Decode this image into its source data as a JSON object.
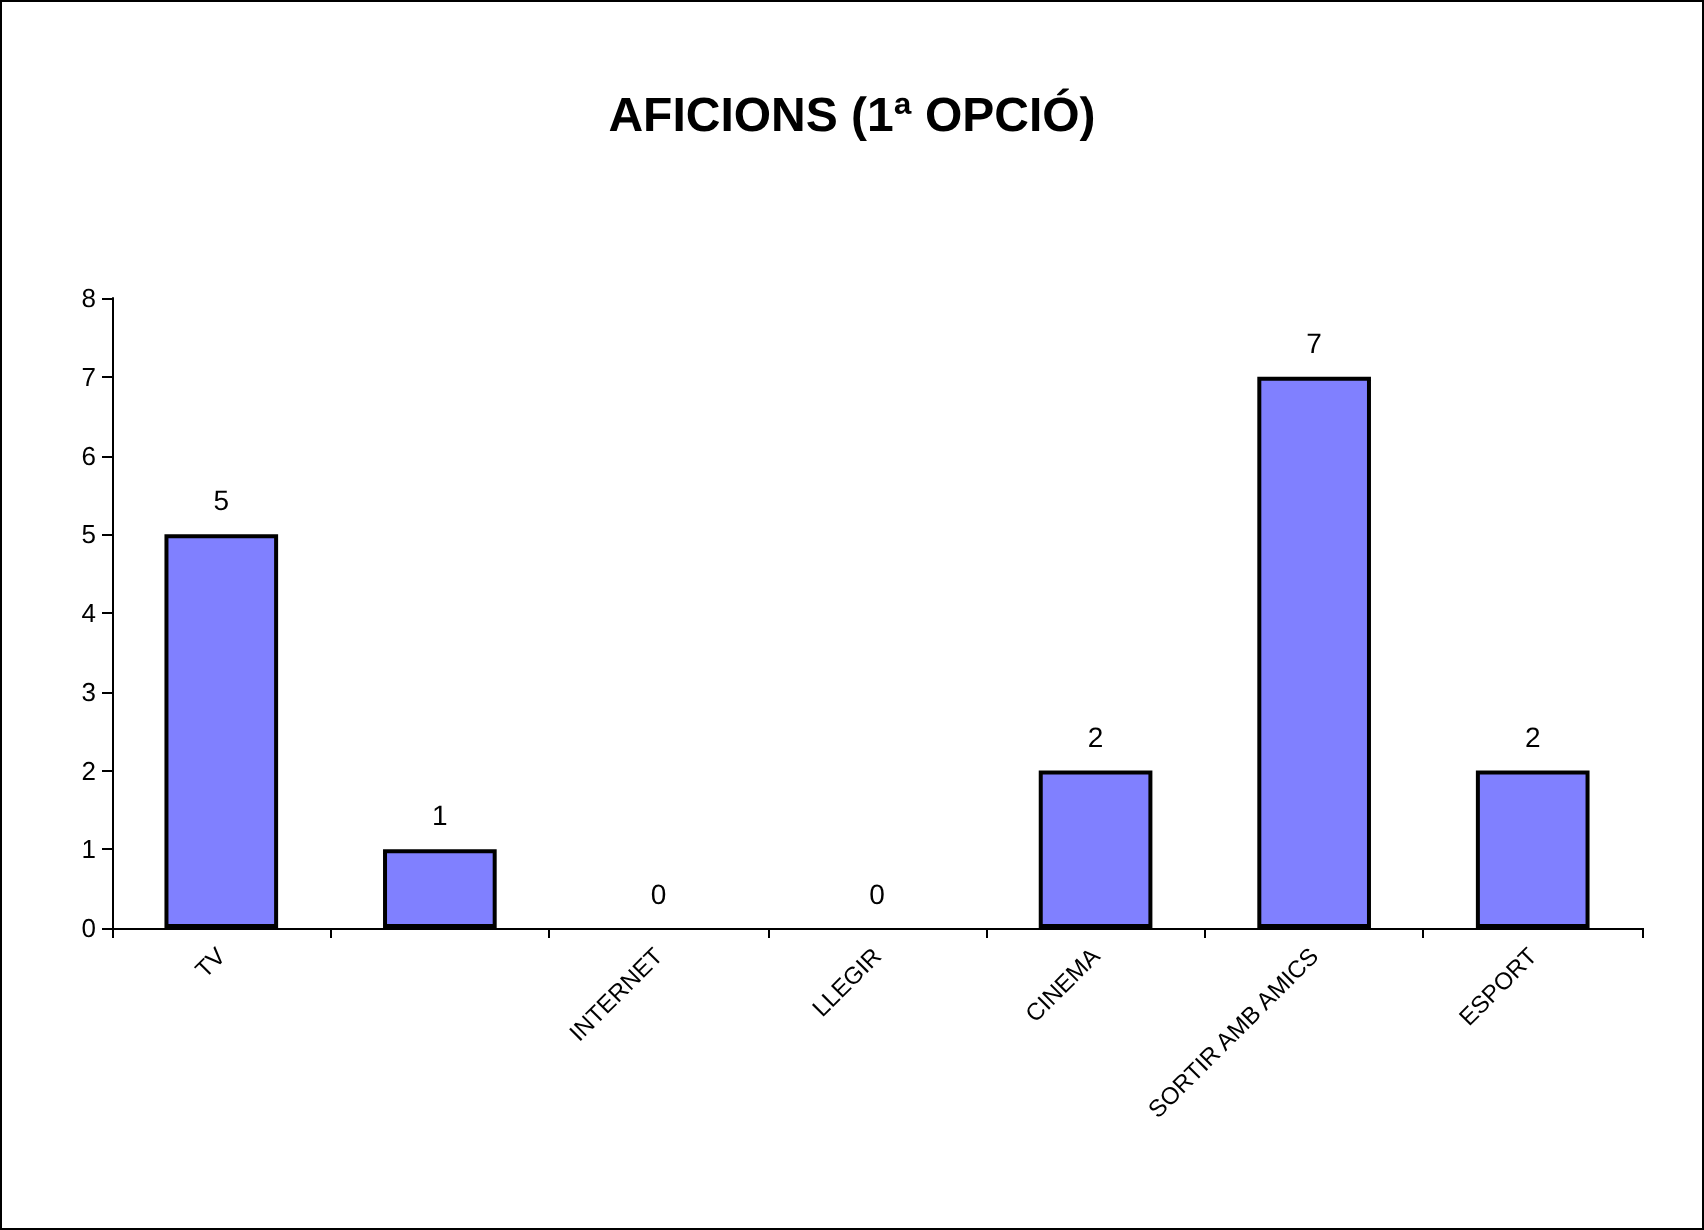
{
  "chart_data": {
    "type": "bar",
    "title": "AFICIONS (1ª OPCIÓ)",
    "categories": [
      "TV",
      null,
      "INTERNET",
      "LLEGIR",
      "CINEMA",
      "SORTIR AMB AMICS",
      "ESPORT"
    ],
    "values": [
      5,
      1,
      0,
      0,
      2,
      7,
      2
    ],
    "color": "#8080ff",
    "ylim": [
      0,
      8
    ],
    "yticks": [
      0,
      1,
      2,
      3,
      4,
      5,
      6,
      7,
      8
    ],
    "grid": false,
    "data_labels": true
  }
}
